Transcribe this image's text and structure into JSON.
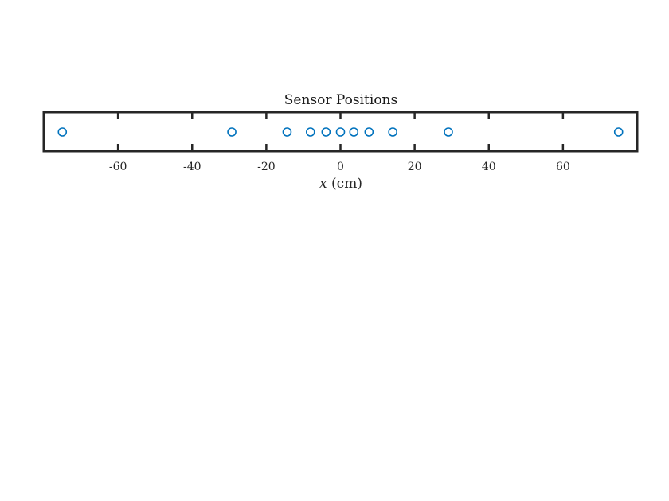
{
  "chart_data": {
    "type": "scatter",
    "title": "Sensor Positions",
    "xlabel_var": "x",
    "xlabel_unit": " (cm)",
    "xlim": [
      -80,
      80
    ],
    "xticks": [
      -60,
      -40,
      -20,
      0,
      20,
      40,
      60
    ],
    "xtick_labels": [
      "-60",
      "-40",
      "-20",
      "0",
      "20",
      "40",
      "60"
    ],
    "y_visible": false,
    "grid": false,
    "marker": "circle-open",
    "series": [
      {
        "x": [
          -75,
          -29.3,
          -14.4,
          -8.1,
          -3.9,
          0,
          3.6,
          7.7,
          14.1,
          29.1,
          75
        ],
        "y": [
          0,
          0,
          0,
          0,
          0,
          0,
          0,
          0,
          0,
          0,
          0
        ]
      }
    ]
  },
  "colors": {
    "marker": "#0072BD",
    "axes": "#262626"
  }
}
